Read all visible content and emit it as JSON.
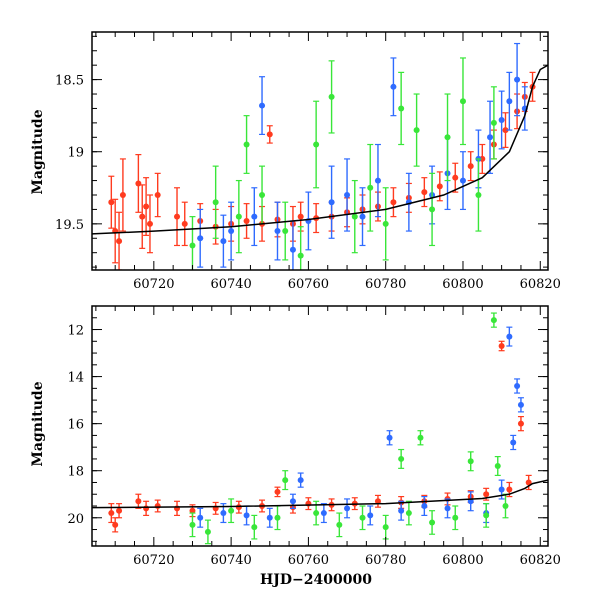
{
  "figure": {
    "xlabel": "HJD−2400000"
  },
  "chart_data": [
    {
      "type": "scatter",
      "panel": "top",
      "ylabel": "Magnitude",
      "xlim": [
        60704,
        60822
      ],
      "ylim": [
        19.82,
        18.17
      ],
      "y_inverted": true,
      "xticks": [
        60720,
        60740,
        60760,
        60780,
        60800,
        60820
      ],
      "yticks": [
        18.5,
        19,
        19.5
      ],
      "ytick_labels": [
        "18.5",
        "19",
        "19.5"
      ],
      "series": [
        {
          "color": "#ff3b1f",
          "points": [
            [
              60709,
              19.35,
              0.18
            ],
            [
              60710,
              19.55,
              0.22
            ],
            [
              60711,
              19.62,
              0.2
            ],
            [
              60712,
              19.3,
              0.25
            ],
            [
              60716,
              19.22,
              0.2
            ],
            [
              60717,
              19.45,
              0.22
            ],
            [
              60718,
              19.38,
              0.2
            ],
            [
              60719,
              19.5,
              0.2
            ],
            [
              60721,
              19.3,
              0.15
            ],
            [
              60726,
              19.45,
              0.2
            ],
            [
              60728,
              19.5,
              0.15
            ],
            [
              60732,
              19.48,
              0.12
            ],
            [
              60736,
              19.52,
              0.12
            ],
            [
              60740,
              19.5,
              0.12
            ],
            [
              60744,
              19.48,
              0.12
            ],
            [
              60748,
              19.5,
              0.12
            ],
            [
              60750,
              18.88,
              0.06
            ],
            [
              60752,
              19.47,
              0.12
            ],
            [
              60756,
              19.5,
              0.12
            ],
            [
              60758,
              19.45,
              0.1
            ],
            [
              60762,
              19.46,
              0.1
            ],
            [
              60766,
              19.45,
              0.1
            ],
            [
              60770,
              19.42,
              0.1
            ],
            [
              60774,
              19.4,
              0.1
            ],
            [
              60778,
              19.38,
              0.1
            ],
            [
              60782,
              19.35,
              0.1
            ],
            [
              60786,
              19.32,
              0.1
            ],
            [
              60790,
              19.28,
              0.1
            ],
            [
              60794,
              19.24,
              0.1
            ],
            [
              60798,
              19.18,
              0.1
            ],
            [
              60802,
              19.1,
              0.1
            ],
            [
              60805,
              19.05,
              0.1
            ],
            [
              60808,
              18.95,
              0.1
            ],
            [
              60811,
              18.85,
              0.12
            ],
            [
              60814,
              18.72,
              0.12
            ],
            [
              60816,
              18.62,
              0.1
            ],
            [
              60818,
              18.55,
              0.1
            ]
          ]
        },
        {
          "color": "#2f6bff",
          "points": [
            [
              60732,
              19.6,
              0.2
            ],
            [
              60740,
              19.55,
              0.2
            ],
            [
              60746,
              19.45,
              0.2
            ],
            [
              60752,
              19.55,
              0.2
            ],
            [
              60760,
              19.48,
              0.2
            ],
            [
              60766,
              19.35,
              0.25
            ],
            [
              60770,
              19.3,
              0.25
            ],
            [
              60774,
              19.45,
              0.2
            ],
            [
              60778,
              19.2,
              0.25
            ],
            [
              60782,
              18.55,
              0.2
            ],
            [
              60786,
              19.35,
              0.2
            ],
            [
              60792,
              19.3,
              0.2
            ],
            [
              60796,
              19.15,
              0.25
            ],
            [
              60800,
              19.2,
              0.2
            ],
            [
              60804,
              19.05,
              0.2
            ],
            [
              60807,
              18.9,
              0.25
            ],
            [
              60810,
              18.78,
              0.2
            ],
            [
              60812,
              18.65,
              0.2
            ],
            [
              60814,
              18.5,
              0.25
            ],
            [
              60816,
              18.7,
              0.15
            ],
            [
              60748,
              18.68,
              0.2
            ],
            [
              60738,
              19.62,
              0.18
            ],
            [
              60756,
              19.68,
              0.2
            ]
          ]
        },
        {
          "color": "#39e639",
          "points": [
            [
              60730,
              19.65,
              0.2
            ],
            [
              60736,
              19.35,
              0.25
            ],
            [
              60742,
              19.45,
              0.25
            ],
            [
              60748,
              19.3,
              0.2
            ],
            [
              60754,
              19.55,
              0.2
            ],
            [
              60762,
              18.95,
              0.3
            ],
            [
              60766,
              18.62,
              0.25
            ],
            [
              60772,
              19.45,
              0.25
            ],
            [
              60776,
              19.25,
              0.3
            ],
            [
              60780,
              19.5,
              0.25
            ],
            [
              60784,
              18.7,
              0.25
            ],
            [
              60788,
              18.85,
              0.25
            ],
            [
              60792,
              19.4,
              0.25
            ],
            [
              60796,
              18.9,
              0.3
            ],
            [
              60800,
              18.65,
              0.3
            ],
            [
              60804,
              19.3,
              0.25
            ],
            [
              60808,
              18.8,
              0.25
            ],
            [
              60744,
              18.95,
              0.2
            ],
            [
              60758,
              19.72,
              0.2
            ]
          ]
        }
      ],
      "model_curve": [
        [
          60704,
          19.57
        ],
        [
          60720,
          19.55
        ],
        [
          60740,
          19.52
        ],
        [
          60760,
          19.47
        ],
        [
          60780,
          19.4
        ],
        [
          60795,
          19.3
        ],
        [
          60805,
          19.18
        ],
        [
          60812,
          19.0
        ],
        [
          60816,
          18.75
        ],
        [
          60818,
          18.55
        ],
        [
          60820,
          18.43
        ],
        [
          60822,
          18.4
        ]
      ]
    },
    {
      "type": "scatter",
      "panel": "bottom",
      "ylabel": "Magnitude",
      "xlim": [
        60704,
        60822
      ],
      "ylim": [
        21.2,
        11.0
      ],
      "y_inverted": true,
      "xticks": [
        60720,
        60740,
        60760,
        60780,
        60800,
        60820
      ],
      "yticks": [
        12,
        14,
        16,
        18,
        20
      ],
      "ytick_labels": [
        "12",
        "14",
        "16",
        "18",
        "20"
      ],
      "series": [
        {
          "color": "#ff3b1f",
          "points": [
            [
              60709,
              19.8,
              0.4
            ],
            [
              60710,
              20.3,
              0.3
            ],
            [
              60711,
              19.7,
              0.3
            ],
            [
              60716,
              19.3,
              0.3
            ],
            [
              60718,
              19.6,
              0.3
            ],
            [
              60721,
              19.5,
              0.25
            ],
            [
              60726,
              19.6,
              0.3
            ],
            [
              60730,
              19.7,
              0.25
            ],
            [
              60736,
              19.6,
              0.25
            ],
            [
              60742,
              19.55,
              0.25
            ],
            [
              60748,
              19.5,
              0.25
            ],
            [
              60752,
              18.9,
              0.2
            ],
            [
              60756,
              19.55,
              0.25
            ],
            [
              60760,
              19.4,
              0.25
            ],
            [
              60766,
              19.45,
              0.25
            ],
            [
              60772,
              19.4,
              0.25
            ],
            [
              60778,
              19.3,
              0.25
            ],
            [
              60784,
              19.35,
              0.25
            ],
            [
              60790,
              19.3,
              0.25
            ],
            [
              60796,
              19.2,
              0.25
            ],
            [
              60802,
              19.1,
              0.25
            ],
            [
              60806,
              19.0,
              0.25
            ],
            [
              60810,
              12.7,
              0.2
            ],
            [
              60812,
              18.8,
              0.3
            ],
            [
              60815,
              16.0,
              0.3
            ],
            [
              60817,
              18.5,
              0.3
            ]
          ]
        },
        {
          "color": "#2f6bff",
          "points": [
            [
              60732,
              20.0,
              0.4
            ],
            [
              60738,
              19.8,
              0.4
            ],
            [
              60744,
              19.9,
              0.4
            ],
            [
              60750,
              20.0,
              0.4
            ],
            [
              60756,
              19.3,
              0.3
            ],
            [
              60758,
              18.4,
              0.3
            ],
            [
              60764,
              19.8,
              0.4
            ],
            [
              60770,
              19.6,
              0.4
            ],
            [
              60776,
              19.9,
              0.4
            ],
            [
              60781,
              16.6,
              0.3
            ],
            [
              60784,
              19.7,
              0.4
            ],
            [
              60790,
              19.5,
              0.4
            ],
            [
              60796,
              19.6,
              0.4
            ],
            [
              60802,
              19.3,
              0.4
            ],
            [
              60806,
              19.8,
              0.4
            ],
            [
              60810,
              18.8,
              0.4
            ],
            [
              60812,
              12.3,
              0.4
            ],
            [
              60814,
              14.4,
              0.3
            ],
            [
              60815,
              15.2,
              0.3
            ],
            [
              60813,
              16.8,
              0.3
            ]
          ]
        },
        {
          "color": "#39e639",
          "points": [
            [
              60730,
              20.3,
              0.5
            ],
            [
              60734,
              20.6,
              0.5
            ],
            [
              60740,
              19.7,
              0.5
            ],
            [
              60746,
              20.4,
              0.5
            ],
            [
              60752,
              20.0,
              0.5
            ],
            [
              60754,
              18.4,
              0.4
            ],
            [
              60762,
              19.8,
              0.5
            ],
            [
              60768,
              20.3,
              0.5
            ],
            [
              60774,
              20.0,
              0.5
            ],
            [
              60780,
              20.4,
              0.5
            ],
            [
              60784,
              17.5,
              0.4
            ],
            [
              60786,
              19.8,
              0.5
            ],
            [
              60789,
              16.6,
              0.3
            ],
            [
              60792,
              20.2,
              0.5
            ],
            [
              60798,
              20.0,
              0.5
            ],
            [
              60802,
              17.6,
              0.4
            ],
            [
              60806,
              19.9,
              0.5
            ],
            [
              60808,
              11.6,
              0.3
            ],
            [
              60809,
              17.8,
              0.4
            ],
            [
              60811,
              19.5,
              0.5
            ]
          ]
        }
      ],
      "model_curve": [
        [
          60704,
          19.57
        ],
        [
          60740,
          19.52
        ],
        [
          60780,
          19.4
        ],
        [
          60805,
          19.18
        ],
        [
          60812,
          19.0
        ],
        [
          60816,
          18.75
        ],
        [
          60818,
          18.55
        ],
        [
          60822,
          18.4
        ]
      ]
    }
  ]
}
